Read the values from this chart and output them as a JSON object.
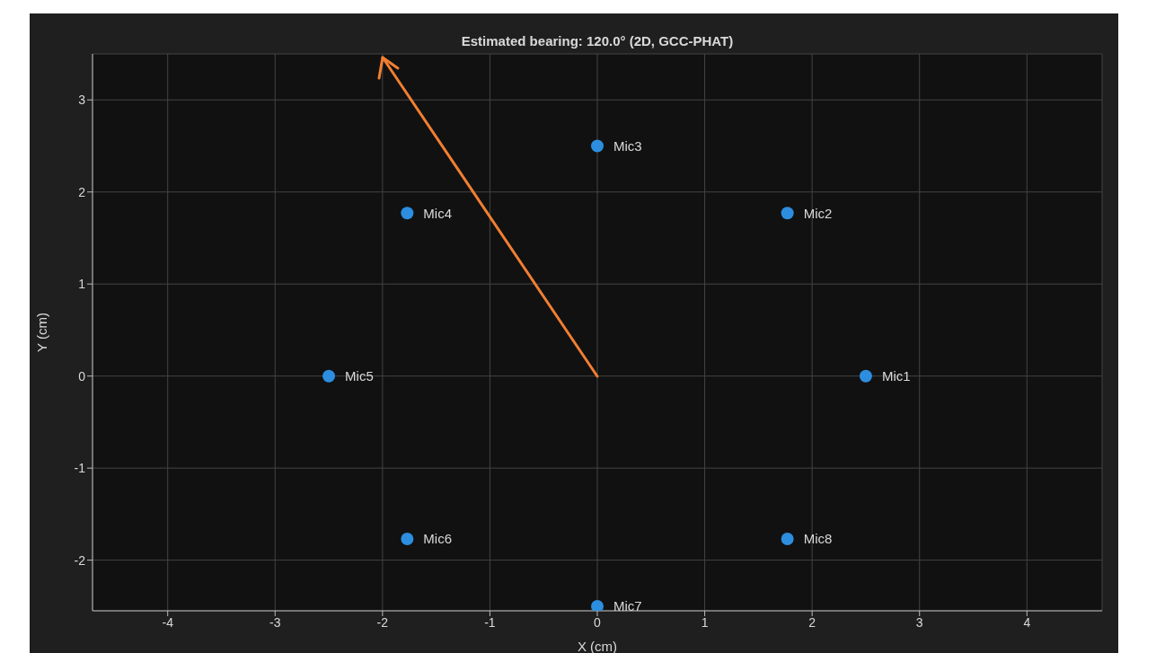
{
  "chart_data": {
    "type": "scatter",
    "title": "Estimated bearing: 120.0° (2D, GCC-PHAT)",
    "xlabel": "X (cm)",
    "ylabel": "Y (cm)",
    "xlim": [
      -4.7,
      4.7
    ],
    "ylim": [
      -2.55,
      3.5
    ],
    "xticks": [
      -4,
      -3,
      -2,
      -1,
      0,
      1,
      2,
      3,
      4
    ],
    "yticks": [
      -2,
      -1,
      0,
      1,
      2,
      3
    ],
    "grid": true,
    "marker": "circle",
    "series": [
      {
        "color": "#2d8ee0",
        "x": [
          2.5,
          1.77,
          0,
          -1.77,
          -2.5,
          -1.77,
          0,
          1.77
        ],
        "values": [
          0,
          1.77,
          2.5,
          1.77,
          0,
          -1.77,
          -2.5,
          -1.77
        ]
      }
    ],
    "annotations": [
      {
        "text": "Mic1",
        "x": 2.5,
        "y": 0
      },
      {
        "text": "Mic2",
        "x": 1.77,
        "y": 1.77
      },
      {
        "text": "Mic3",
        "x": 0,
        "y": 2.5
      },
      {
        "text": "Mic4",
        "x": -1.77,
        "y": 1.77
      },
      {
        "text": "Mic5",
        "x": -2.5,
        "y": 0
      },
      {
        "text": "Mic6",
        "x": -1.77,
        "y": -1.77
      },
      {
        "text": "Mic7",
        "x": 0,
        "y": -2.5
      },
      {
        "text": "Mic8",
        "x": 1.77,
        "y": -1.77
      }
    ]
  }
}
